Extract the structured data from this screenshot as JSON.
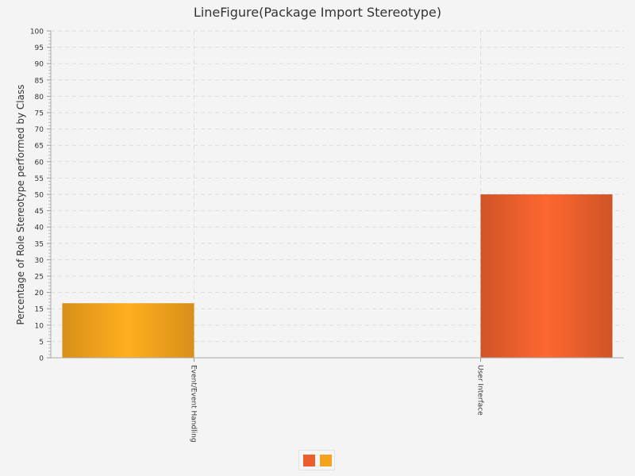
{
  "chart_data": {
    "type": "bar",
    "title": "LineFigure(Package Import Stereotype)",
    "xlabel": "",
    "ylabel": "Percentage of Role Stereotype performed by Class",
    "categories": [
      "Event/Event Handling",
      "User Interface"
    ],
    "series": [
      {
        "values": [
          0,
          50
        ],
        "color": "#ec5f2c"
      },
      {
        "values": [
          16.7,
          0
        ],
        "color": "#f5a21c"
      }
    ],
    "ylim": [
      0,
      100
    ],
    "yticks": [
      0,
      5,
      10,
      15,
      20,
      25,
      30,
      35,
      40,
      45,
      50,
      55,
      60,
      65,
      70,
      75,
      80,
      85,
      90,
      95,
      100
    ],
    "grid": true,
    "legend_position": "bottom"
  }
}
